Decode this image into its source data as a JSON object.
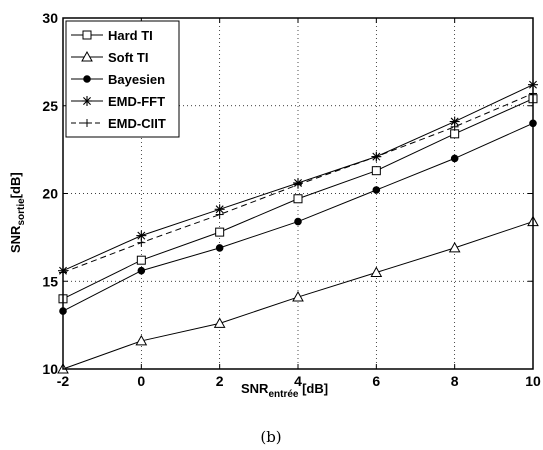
{
  "chart_data": {
    "type": "line",
    "x": [
      -2,
      0,
      2,
      4,
      6,
      8,
      10
    ],
    "xlim": [
      -2,
      10
    ],
    "ylim": [
      10,
      30
    ],
    "xticks": [
      "-2",
      "0",
      "2",
      "4",
      "6",
      "8",
      "10"
    ],
    "yticks": [
      "10",
      "15",
      "20",
      "25",
      "30"
    ],
    "xlabel": {
      "main": "SNR",
      "sub": "entrée",
      "unit": " [dB]"
    },
    "ylabel": {
      "main": "SNR",
      "sub": "sortie",
      "unit": "[dB]"
    },
    "grid": "dotted",
    "legend_position": "top-left",
    "series": [
      {
        "name": "Hard TI",
        "marker": "square",
        "dash": "solid",
        "values": [
          14.0,
          16.2,
          17.8,
          19.7,
          21.3,
          23.4,
          25.4
        ]
      },
      {
        "name": "Soft TI",
        "marker": "triangle",
        "dash": "solid",
        "values": [
          10.0,
          11.6,
          12.6,
          14.1,
          15.5,
          16.9,
          18.4
        ]
      },
      {
        "name": "Bayesien",
        "marker": "dot",
        "dash": "solid",
        "values": [
          13.3,
          15.6,
          16.9,
          18.4,
          20.2,
          22.0,
          24.0
        ]
      },
      {
        "name": "EMD-FFT",
        "marker": "star",
        "dash": "solid",
        "values": [
          15.6,
          17.6,
          19.1,
          20.6,
          22.1,
          24.1,
          26.2
        ]
      },
      {
        "name": "EMD-CIIT",
        "marker": "plus",
        "dash": "dashed",
        "values": [
          15.5,
          17.2,
          18.8,
          20.5,
          22.1,
          23.8,
          25.7
        ]
      }
    ]
  },
  "caption": "(b)"
}
